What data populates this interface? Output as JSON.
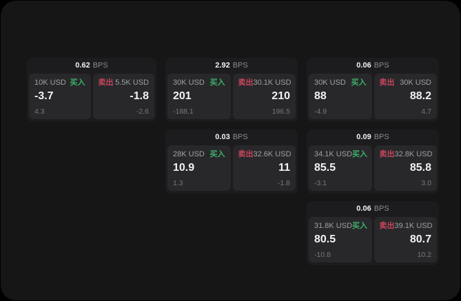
{
  "page": {
    "bps_suffix": "BPS",
    "buy_tag": "买入",
    "sell_tag": "卖出",
    "colors": {
      "background": "#000000",
      "surface": "#161616",
      "card": "#1c1c1e",
      "panel": "#28282a",
      "buy": "#3db06a",
      "sell": "#c4465c"
    }
  },
  "cards": [
    {
      "bps": "0.62",
      "buy": {
        "size": "10K USD",
        "tag": "买入",
        "value": "-3.7",
        "sub": "4.3"
      },
      "sell": {
        "tag": "卖出",
        "size": "5.5K USD",
        "value": "-1.8",
        "sub": "-2.6"
      }
    },
    {
      "bps": "2.92",
      "buy": {
        "size": "30K USD",
        "tag": "买入",
        "value": "201",
        "sub": "-188.1"
      },
      "sell": {
        "tag": "卖出",
        "size": "30.1K USD",
        "value": "210",
        "sub": "196.5"
      }
    },
    {
      "bps": "0.06",
      "buy": {
        "size": "30K USD",
        "tag": "买入",
        "value": "88",
        "sub": "-4.9"
      },
      "sell": {
        "tag": "卖出",
        "size": "30K USD",
        "value": "88.2",
        "sub": "4.7"
      }
    },
    {
      "bps": "0.03",
      "buy": {
        "size": "28K USD",
        "tag": "买入",
        "value": "10.9",
        "sub": "1.3"
      },
      "sell": {
        "tag": "卖出",
        "size": "32.6K USD",
        "value": "11",
        "sub": "-1.8"
      }
    },
    {
      "bps": "0.09",
      "buy": {
        "size": "34.1K USD",
        "tag": "买入",
        "value": "85.5",
        "sub": "-3.1"
      },
      "sell": {
        "tag": "卖出",
        "size": "32.8K USD",
        "value": "85.8",
        "sub": "3.0"
      }
    },
    {
      "bps": "0.06",
      "buy": {
        "size": "31.8K USD",
        "tag": "买入",
        "value": "80.5",
        "sub": "-10.8"
      },
      "sell": {
        "tag": "卖出",
        "size": "39.1K USD",
        "value": "80.7",
        "sub": "10.2"
      }
    }
  ]
}
